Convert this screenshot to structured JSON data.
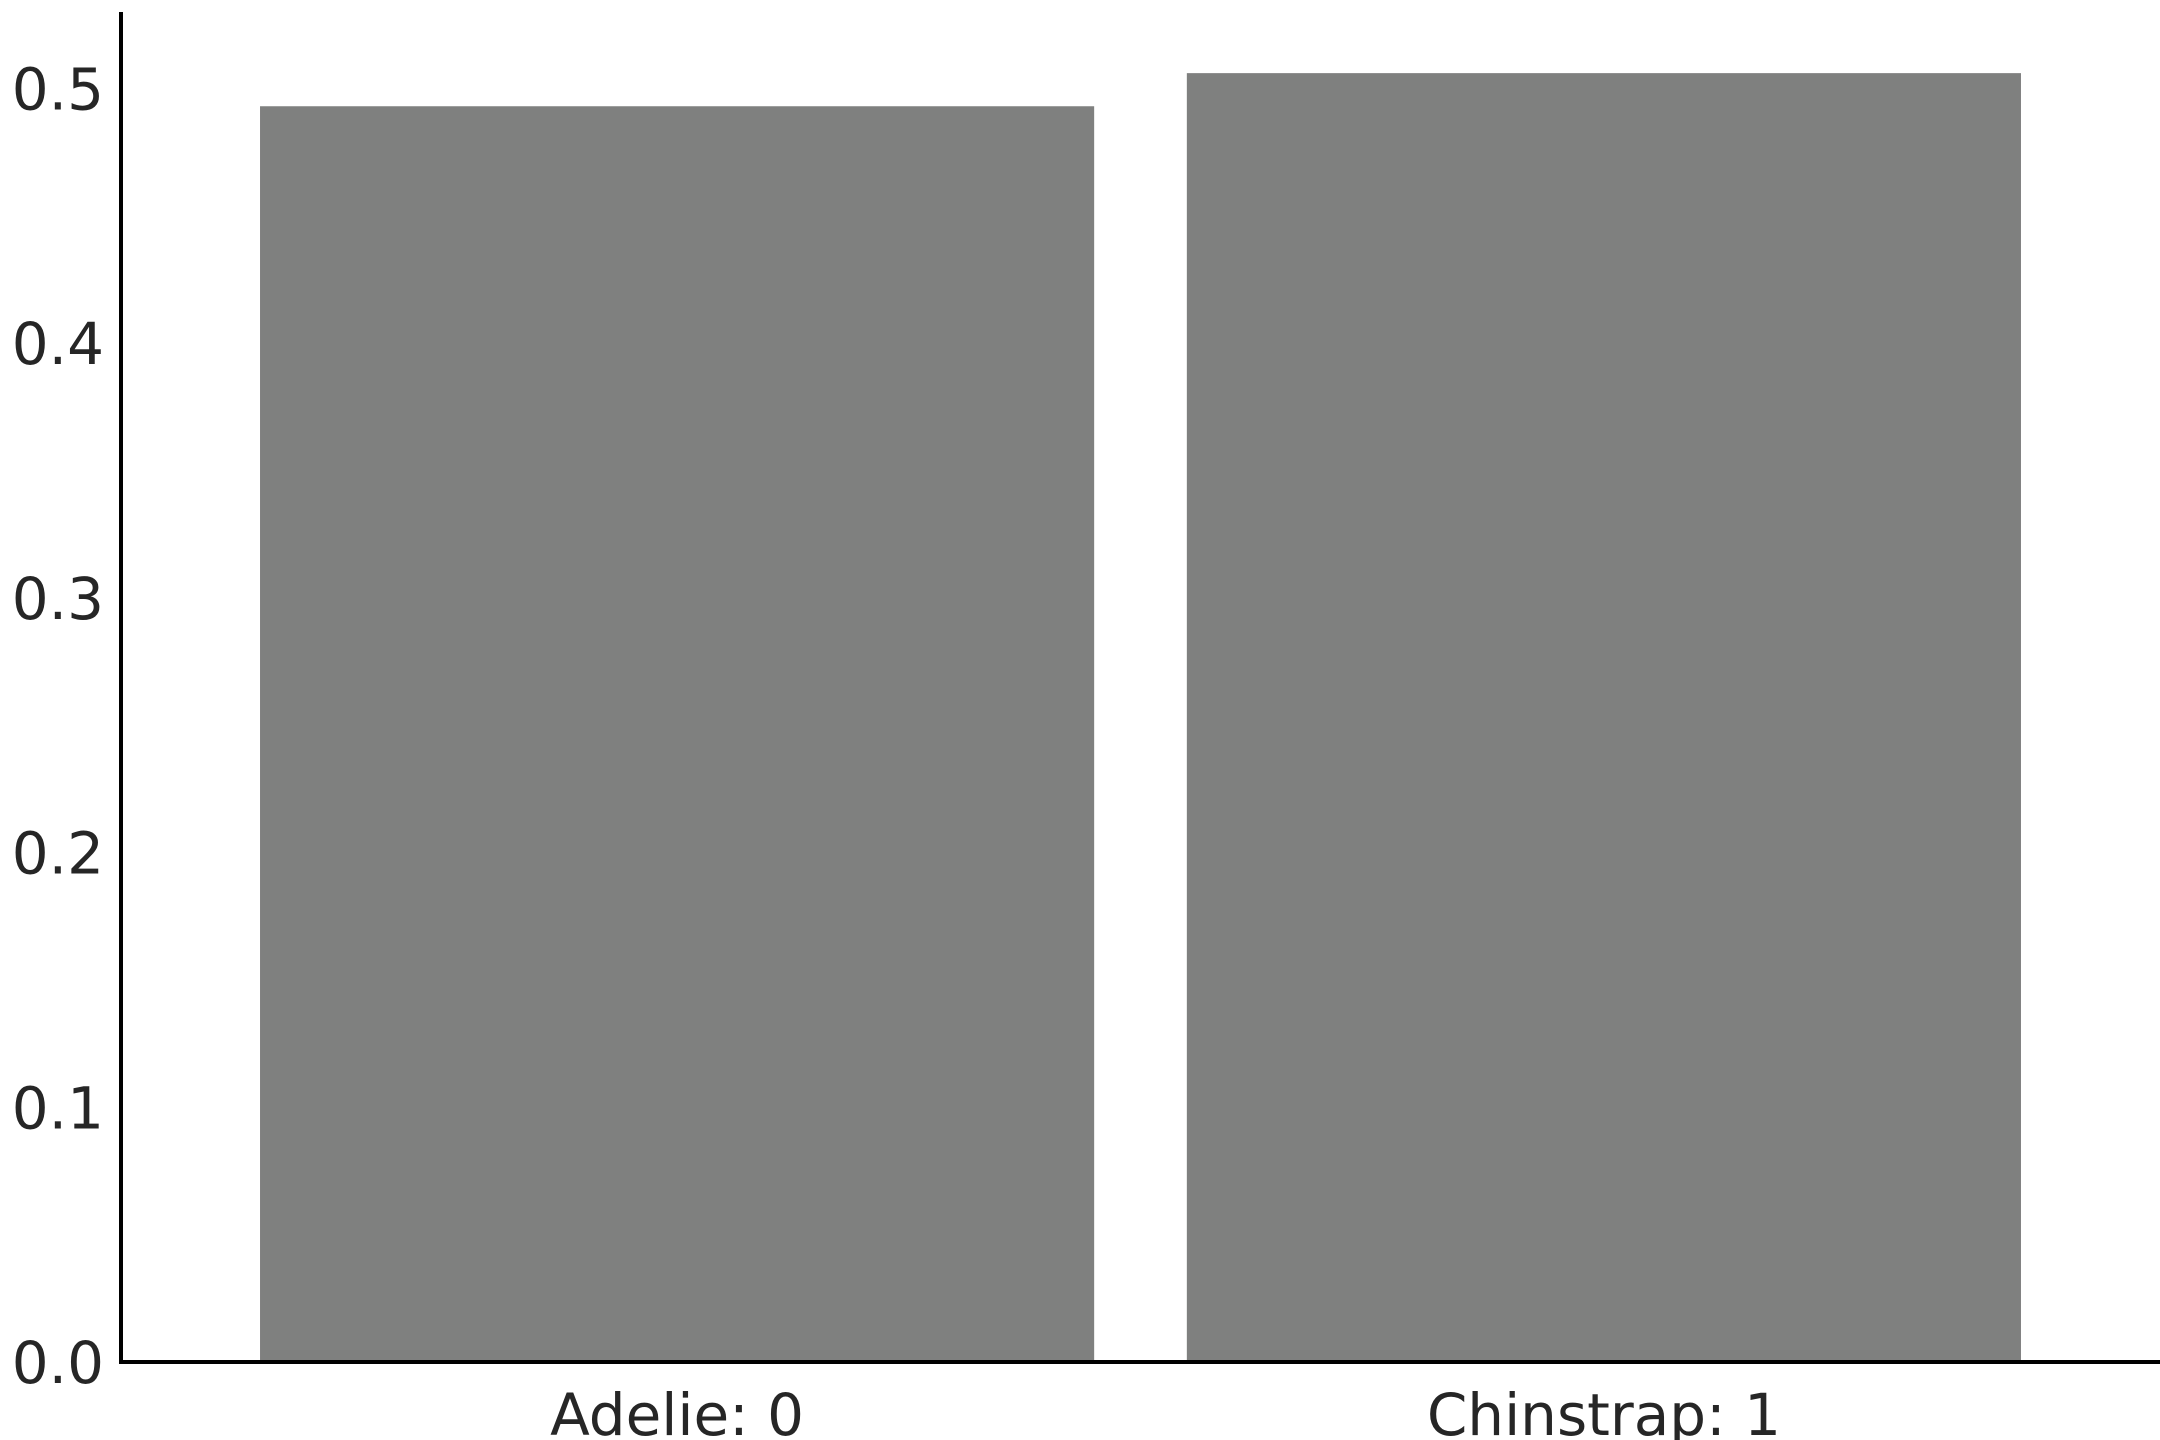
{
  "chart_data": {
    "type": "bar",
    "categories": [
      "Adelie: 0",
      "Chinstrap: 1"
    ],
    "values": [
      0.493,
      0.506
    ],
    "title": "",
    "xlabel": "",
    "ylabel": "",
    "ylim": [
      0,
      0.53
    ],
    "yticks": [
      0.0,
      0.1,
      0.2,
      0.3,
      0.4,
      0.5
    ],
    "ytick_labels": [
      "0.0",
      "0.1",
      "0.2",
      "0.3",
      "0.4",
      "0.5"
    ],
    "grid": false,
    "legend": "none",
    "bar_color": "#7f807f"
  }
}
